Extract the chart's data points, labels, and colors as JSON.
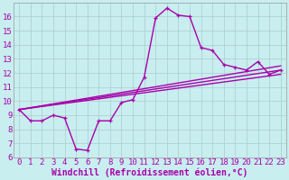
{
  "xlabel": "Windchill (Refroidissement éolien,°C)",
  "background_color": "#c8eef0",
  "grid_color": "#aacccc",
  "line_color": "#aa00aa",
  "xlim_min": -0.5,
  "xlim_max": 23.5,
  "ylim_min": 6,
  "ylim_max": 17,
  "xticks": [
    0,
    1,
    2,
    3,
    4,
    5,
    6,
    7,
    8,
    9,
    10,
    11,
    12,
    13,
    14,
    15,
    16,
    17,
    18,
    19,
    20,
    21,
    22,
    23
  ],
  "yticks": [
    6,
    7,
    8,
    9,
    10,
    11,
    12,
    13,
    14,
    15,
    16
  ],
  "temp_data": [
    9.4,
    8.6,
    8.6,
    9.0,
    8.8,
    6.6,
    6.5,
    8.6,
    8.6,
    9.9,
    10.1,
    11.7,
    15.9,
    16.6,
    16.1,
    16.0,
    13.8,
    13.6,
    12.6,
    12.4,
    12.2,
    12.8,
    11.9,
    12.2
  ],
  "straight_lines": [
    {
      "x0": 0,
      "y0": 9.4,
      "x1": 23,
      "y1": 12.5
    },
    {
      "x0": 0,
      "y0": 9.4,
      "x1": 23,
      "y1": 12.2
    },
    {
      "x0": 0,
      "y0": 9.4,
      "x1": 23,
      "y1": 11.9
    }
  ],
  "tick_fontsize": 6.5,
  "xlabel_fontsize": 7,
  "line_width": 1.0,
  "marker_size": 3.5
}
